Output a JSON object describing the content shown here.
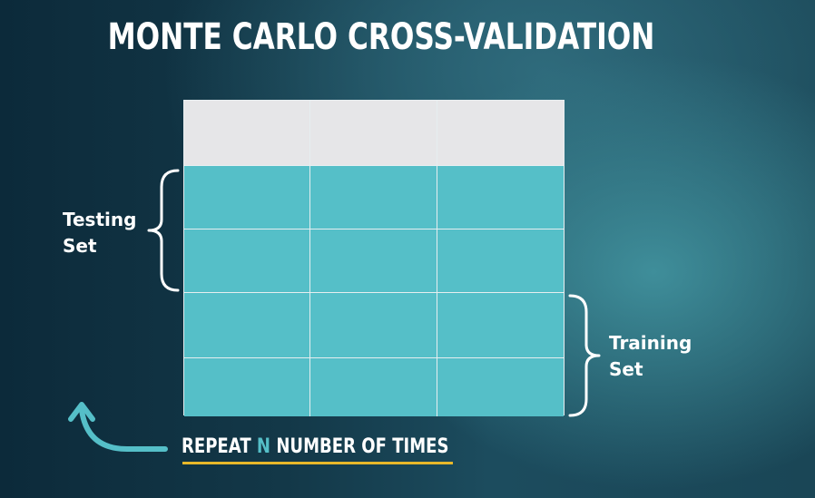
{
  "title": "MONTE CARLO CROSS-VALIDATION",
  "labels": {
    "testing_line1": "Testing",
    "testing_line2": "Set",
    "training_line1": "Training",
    "training_line2": "Set"
  },
  "footer": {
    "part1": "REPEAT",
    "highlight": "N",
    "part2": "NUMBER OF TIMES"
  },
  "grid": {
    "columns": 3,
    "rows": [
      {
        "type": "header"
      },
      {
        "type": "data"
      },
      {
        "type": "data"
      },
      {
        "type": "data"
      },
      {
        "type": "data"
      }
    ]
  },
  "colors": {
    "header_cell": "#e6e6e8",
    "data_cell": "#55bfc8",
    "accent": "#55bfc8",
    "underline": "#e8b82a"
  }
}
